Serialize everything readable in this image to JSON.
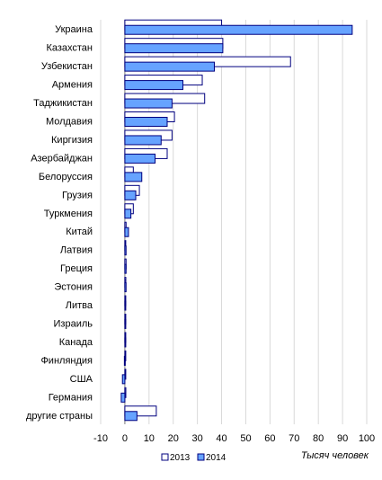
{
  "chart_data": {
    "type": "bar",
    "orientation": "horizontal",
    "categories": [
      "Украина",
      "Казахстан",
      "Узбекистан",
      "Армения",
      "Таджикистан",
      "Молдавия",
      "Киргизия",
      "Азербайджан",
      "Белоруссия",
      "Грузия",
      "Туркмения",
      "Китай",
      "Латвия",
      "Греция",
      "Эстония",
      "Литва",
      "Израиль",
      "Канада",
      "Финляндия",
      "США",
      "Германия",
      "другие страны"
    ],
    "series": [
      {
        "name": "2013",
        "values": [
          40.0,
          40.5,
          68.5,
          32.0,
          33.0,
          20.5,
          19.5,
          17.5,
          3.5,
          6.0,
          3.5,
          0.5,
          0.3,
          0.5,
          0.4,
          0.2,
          0.3,
          0.1,
          0.1,
          0.1,
          0.4,
          13.0
        ],
        "fill": "#ffffff",
        "stroke": "#00007f"
      },
      {
        "name": "2014",
        "values": [
          94.0,
          40.5,
          37.0,
          24.0,
          19.5,
          17.5,
          15.0,
          12.5,
          7.0,
          4.5,
          2.5,
          1.5,
          0.5,
          0.5,
          0.5,
          0.2,
          0.3,
          0.1,
          -0.2,
          -1.0,
          -1.5,
          5.0
        ],
        "fill": "#66a3ff",
        "stroke": "#00007f"
      }
    ],
    "xlim": [
      -10,
      100
    ],
    "xticks": [
      "-10",
      "0",
      "10",
      "20",
      "30",
      "40",
      "50",
      "60",
      "70",
      "80",
      "90",
      "100"
    ],
    "xlabel": "Тысяч человек",
    "legend_position": "bottom",
    "grid": "vertical"
  }
}
